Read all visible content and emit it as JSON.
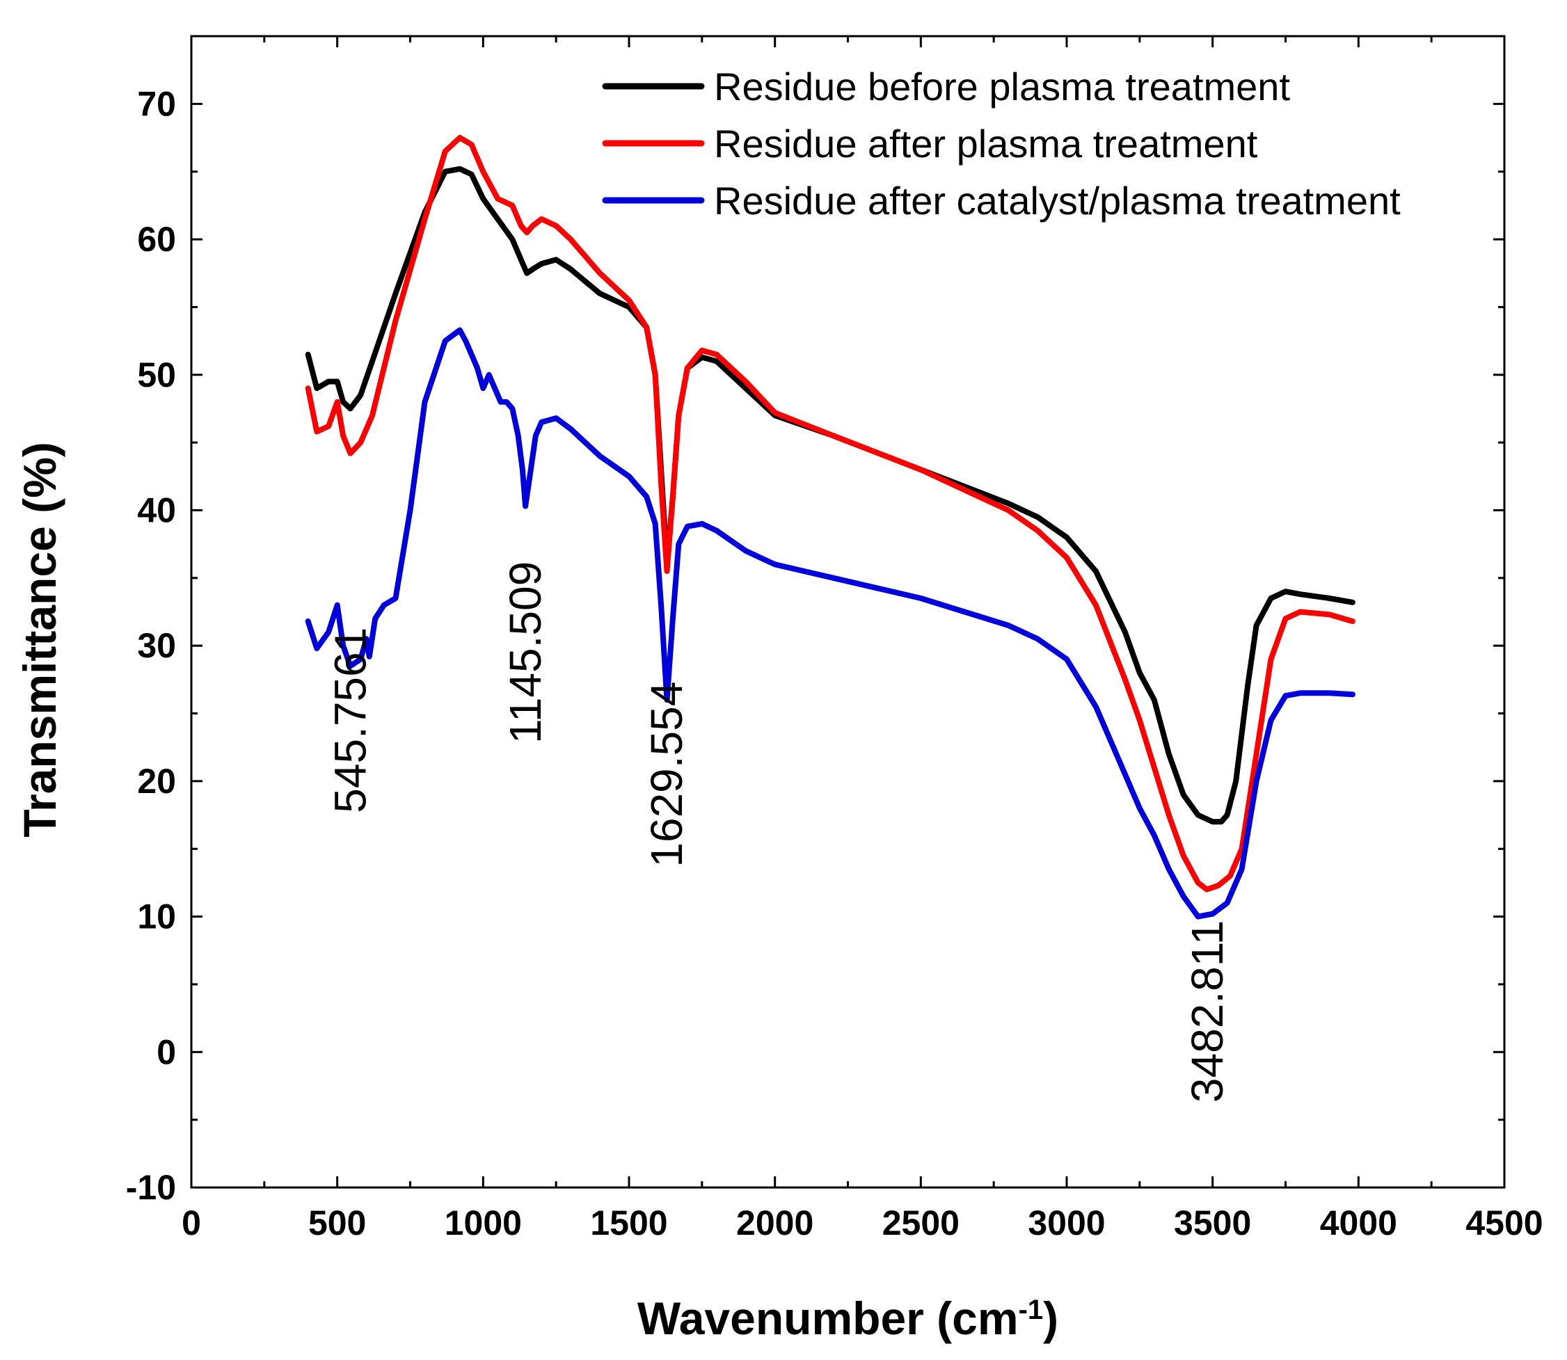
{
  "chart_data": {
    "type": "line",
    "title": "",
    "xlabel": "Wavenumber (cm",
    "xlabel_sup": "-1",
    "xlabel_close": ")",
    "ylabel": "Transmittance (%)",
    "xlim": [
      0,
      4500
    ],
    "ylim": [
      -10,
      75
    ],
    "x_ticks": [
      0,
      500,
      1000,
      1500,
      2000,
      2500,
      3000,
      3500,
      4000,
      4500
    ],
    "x_tick_labels": [
      "0",
      "500",
      "1000",
      "1500",
      "2000",
      "2500",
      "3000",
      "3500",
      "4000",
      "4500"
    ],
    "y_ticks": [
      -10,
      0,
      10,
      20,
      30,
      40,
      50,
      60,
      70
    ],
    "y_tick_labels": [
      "-10",
      "0",
      "10",
      "20",
      "30",
      "40",
      "50",
      "60",
      "70"
    ],
    "legend_position": "top-right",
    "series": [
      {
        "name": "Residue before plasma treatment",
        "color": "#000000",
        "x": [
          400,
          430,
          470,
          500,
          520,
          545,
          580,
          620,
          700,
          800,
          870,
          920,
          960,
          1000,
          1050,
          1100,
          1130,
          1150,
          1170,
          1200,
          1250,
          1300,
          1400,
          1500,
          1560,
          1590,
          1610,
          1630,
          1650,
          1670,
          1700,
          1750,
          1800,
          1900,
          2000,
          2200,
          2500,
          2800,
          2900,
          3000,
          3100,
          3200,
          3250,
          3300,
          3350,
          3400,
          3450,
          3500,
          3530,
          3550,
          3580,
          3620,
          3650,
          3700,
          3750,
          3800,
          3900,
          3980
        ],
        "y": [
          51.5,
          49.0,
          49.5,
          49.5,
          48.0,
          47.5,
          48.5,
          51.0,
          56.0,
          62.0,
          65.0,
          65.2,
          64.8,
          63.0,
          61.5,
          60.0,
          58.5,
          57.5,
          57.8,
          58.2,
          58.5,
          57.8,
          56.0,
          55.0,
          53.5,
          50.0,
          43.0,
          36.0,
          41.0,
          47.0,
          50.5,
          51.3,
          51.0,
          49.0,
          47.0,
          45.5,
          43.0,
          40.5,
          39.5,
          38.0,
          35.5,
          31.0,
          28.0,
          26.0,
          22.0,
          19.0,
          17.5,
          17.0,
          17.0,
          17.5,
          20.0,
          27.0,
          31.5,
          33.5,
          34.0,
          33.8,
          33.5,
          33.2
        ]
      },
      {
        "name": "Residue after plasma treatment",
        "color": "#ff0000",
        "x": [
          400,
          430,
          470,
          500,
          520,
          545,
          580,
          620,
          700,
          800,
          870,
          920,
          960,
          1000,
          1050,
          1100,
          1130,
          1150,
          1170,
          1200,
          1250,
          1300,
          1400,
          1500,
          1560,
          1590,
          1610,
          1630,
          1650,
          1670,
          1700,
          1750,
          1800,
          1900,
          2000,
          2200,
          2500,
          2800,
          2900,
          3000,
          3100,
          3200,
          3250,
          3300,
          3350,
          3400,
          3450,
          3480,
          3520,
          3560,
          3600,
          3650,
          3700,
          3750,
          3800,
          3900,
          3980
        ],
        "y": [
          49.0,
          45.8,
          46.2,
          48.0,
          45.5,
          44.2,
          45.0,
          47.0,
          54.0,
          61.5,
          66.5,
          67.5,
          67.0,
          65.0,
          63.0,
          62.5,
          61.0,
          60.5,
          61.0,
          61.5,
          61.0,
          60.0,
          57.5,
          55.5,
          53.5,
          50.0,
          42.0,
          35.5,
          41.0,
          47.0,
          50.5,
          51.8,
          51.5,
          49.5,
          47.2,
          45.5,
          43.0,
          40.0,
          38.5,
          36.5,
          33.0,
          27.5,
          24.5,
          21.0,
          17.5,
          14.5,
          12.5,
          12.0,
          12.3,
          13.0,
          15.0,
          22.0,
          29.0,
          32.0,
          32.5,
          32.3,
          31.8
        ]
      },
      {
        "name": "Residue after catalyst/plasma treatment",
        "color": "#0000dd",
        "x": [
          400,
          430,
          470,
          500,
          520,
          545,
          580,
          600,
          610,
          630,
          660,
          700,
          750,
          800,
          870,
          920,
          940,
          960,
          980,
          1000,
          1020,
          1040,
          1060,
          1080,
          1100,
          1120,
          1135,
          1145,
          1160,
          1180,
          1200,
          1250,
          1300,
          1400,
          1500,
          1560,
          1590,
          1610,
          1630,
          1650,
          1670,
          1700,
          1750,
          1800,
          1900,
          2000,
          2200,
          2500,
          2800,
          2900,
          3000,
          3100,
          3200,
          3250,
          3300,
          3350,
          3400,
          3450,
          3500,
          3550,
          3600,
          3650,
          3700,
          3750,
          3800,
          3900,
          3980
        ],
        "y": [
          31.8,
          29.8,
          31.0,
          33.0,
          30.0,
          28.5,
          29.0,
          30.5,
          29.2,
          32.0,
          33.0,
          33.5,
          40.0,
          48.0,
          52.5,
          53.3,
          52.5,
          51.5,
          50.5,
          49.0,
          50.0,
          49.0,
          48.0,
          48.0,
          47.5,
          45.5,
          43.0,
          40.3,
          42.5,
          45.5,
          46.5,
          46.8,
          46.0,
          44.0,
          42.5,
          41.0,
          39.0,
          33.0,
          26.0,
          32.0,
          37.5,
          38.8,
          39.0,
          38.5,
          37.0,
          36.0,
          35.0,
          33.5,
          31.5,
          30.5,
          29.0,
          25.5,
          20.5,
          18.0,
          16.0,
          13.5,
          11.5,
          10.0,
          10.2,
          11.0,
          13.5,
          20.0,
          24.5,
          26.3,
          26.5,
          26.5,
          26.4
        ]
      }
    ],
    "annotations": [
      {
        "text": "545.7561",
        "x": 545,
        "y": 24.5
      },
      {
        "text": "1145.509",
        "x": 1145,
        "y": 29.5
      },
      {
        "text": "1629.554",
        "x": 1629,
        "y": 20.5
      },
      {
        "text": "3482.811",
        "x": 3482,
        "y": 3.0
      }
    ]
  }
}
